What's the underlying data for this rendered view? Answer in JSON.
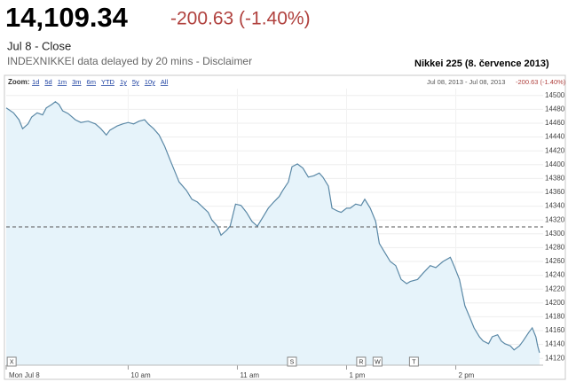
{
  "header": {
    "price": "14,109.34",
    "change": "-200.63 (-1.40%)",
    "date_line": "Jul 8 - Close",
    "source": "INDEXNIKKEI data delayed by 20 mins - Disclaimer"
  },
  "chart_data": {
    "type": "line",
    "title": "Nikkei 225 (8. července 2013)",
    "toolbar": {
      "zoom_label": "Zoom:",
      "zoom_options": [
        "1d",
        "5d",
        "1m",
        "3m",
        "6m",
        "YTD",
        "1y",
        "5y",
        "10y",
        "All"
      ],
      "range": "Jul 08, 2013 - Jul 08, 2013",
      "change": "-200.63 (-1.40%)"
    },
    "x": [
      -7,
      -3,
      0,
      2,
      5,
      7,
      10,
      13,
      15,
      18,
      20,
      22,
      24,
      27,
      31,
      34,
      38,
      42,
      45,
      48,
      50,
      54,
      57,
      60,
      63,
      66,
      69,
      71,
      74,
      77,
      80,
      83,
      86,
      88,
      92,
      95,
      98,
      100,
      104,
      106,
      109,
      111,
      114,
      116,
      119,
      122,
      125,
      128,
      131,
      134,
      137,
      140,
      143,
      145,
      148,
      150,
      153,
      156,
      159,
      162,
      165,
      167,
      170,
      172,
      175,
      177,
      180,
      182,
      185,
      188,
      190,
      193,
      196,
      198,
      201,
      204,
      207,
      210,
      213,
      215,
      219,
      222,
      226,
      229,
      233,
      237,
      239,
      242,
      245,
      248,
      250,
      253,
      255,
      258,
      260,
      263,
      265,
      267,
      270,
      272,
      275,
      277,
      280,
      282,
      284,
      285,
      286
    ],
    "values": [
      14482,
      14475,
      14465,
      14452,
      14459,
      14469,
      14475,
      14472,
      14482,
      14487,
      14491,
      14487,
      14478,
      14474,
      14465,
      14461,
      14463,
      14459,
      14452,
      14443,
      14450,
      14456,
      14459,
      14461,
      14459,
      14463,
      14465,
      14459,
      14452,
      14443,
      14427,
      14407,
      14388,
      14375,
      14363,
      14350,
      14346,
      14341,
      14331,
      14320,
      14311,
      14298,
      14305,
      14311,
      14343,
      14341,
      14331,
      14318,
      14311,
      14324,
      14337,
      14346,
      14354,
      14363,
      14375,
      14397,
      14401,
      14395,
      14382,
      14384,
      14388,
      14382,
      14369,
      14337,
      14333,
      14331,
      14337,
      14337,
      14343,
      14341,
      14350,
      14337,
      14318,
      14286,
      14273,
      14260,
      14254,
      14234,
      14228,
      14231,
      14234,
      14243,
      14254,
      14251,
      14260,
      14266,
      14254,
      14234,
      14196,
      14177,
      14164,
      14151,
      14145,
      14141,
      14151,
      14154,
      14145,
      14141,
      14138,
      14132,
      14138,
      14145,
      14157,
      14164,
      14151,
      14138,
      14128
    ],
    "color": "#5a88a6",
    "previous_close": 14309.97,
    "xlim": [
      -7,
      288
    ],
    "xticks": [
      {
        "value": -7,
        "label": "Mon Jul 8"
      },
      {
        "value": 60,
        "label": "10 am"
      },
      {
        "value": 120,
        "label": "11 am"
      },
      {
        "value": 180,
        "label": "1 pm"
      },
      {
        "value": 240,
        "label": "2 pm"
      }
    ],
    "ylim": [
      14110,
      14510
    ],
    "yticks": [
      14120,
      14140,
      14160,
      14180,
      14200,
      14220,
      14240,
      14260,
      14280,
      14300,
      14320,
      14340,
      14360,
      14380,
      14400,
      14420,
      14440,
      14460,
      14480,
      14500
    ],
    "markers": [
      {
        "label": "X",
        "x": -4
      },
      {
        "label": "S",
        "x": 150
      },
      {
        "label": "R",
        "x": 188
      },
      {
        "label": "W",
        "x": 197
      },
      {
        "label": "T",
        "x": 217
      }
    ],
    "grid": true
  }
}
